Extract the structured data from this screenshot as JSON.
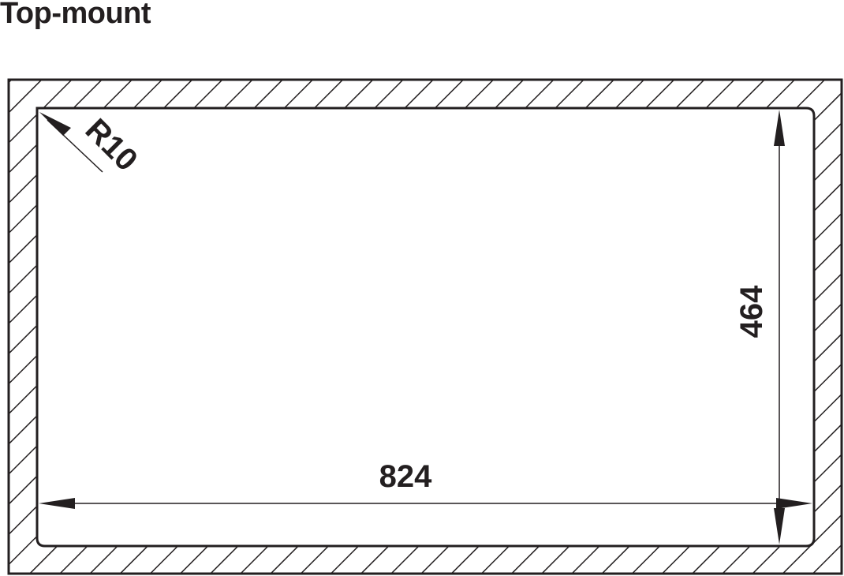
{
  "title": "Top-mount",
  "dimensions": {
    "width": "824",
    "height": "464",
    "radius": "R10"
  },
  "colors": {
    "line": "#231f20",
    "background": "#ffffff"
  }
}
